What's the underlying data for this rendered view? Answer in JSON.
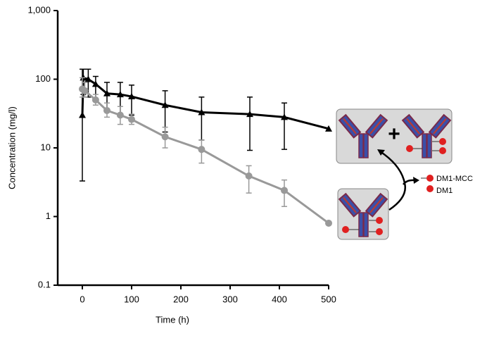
{
  "chart_data": {
    "type": "line",
    "log_y": true,
    "xlabel": "Time (h)",
    "ylabel": "Concentration (mg/l)",
    "xlim": [
      -50,
      500
    ],
    "ylim": [
      0.1,
      1000
    ],
    "xticks": [
      0,
      100,
      200,
      300,
      400,
      500
    ],
    "yticks": [
      0.1,
      1,
      10,
      100,
      {
        "value": 1000,
        "label": "1,000"
      }
    ],
    "series": [
      {
        "color": "#000000",
        "marker": "triangle",
        "x": [
          0,
          2,
          12,
          27,
          50,
          77,
          100,
          168,
          242,
          340,
          410,
          500
        ],
        "values": [
          30,
          105,
          100,
          85,
          62,
          60,
          56,
          42,
          33,
          31,
          28,
          19
        ],
        "err_high": [
          140,
          140,
          140,
          110,
          90,
          90,
          82,
          68,
          55,
          55,
          45,
          null
        ],
        "err_low": [
          3.3,
          60,
          55,
          50,
          35,
          30,
          30,
          17,
          13,
          9.2,
          9.5,
          null
        ]
      },
      {
        "color": "#999999",
        "marker": "circle",
        "x": [
          0,
          5,
          27,
          50,
          77,
          100,
          168,
          242,
          338,
          410,
          500
        ],
        "values": [
          72,
          68,
          50,
          35,
          30,
          26,
          14.5,
          9.5,
          3.9,
          2.4,
          0.8
        ],
        "err_high": [
          105,
          90,
          60,
          45,
          40,
          31,
          20,
          13,
          5.5,
          3.4,
          null
        ],
        "err_low": [
          55,
          55,
          42,
          28,
          22,
          22,
          10,
          6,
          2.2,
          1.4,
          null
        ]
      }
    ],
    "legend_labels": [
      "DM1-MCC",
      "DM1"
    ]
  }
}
